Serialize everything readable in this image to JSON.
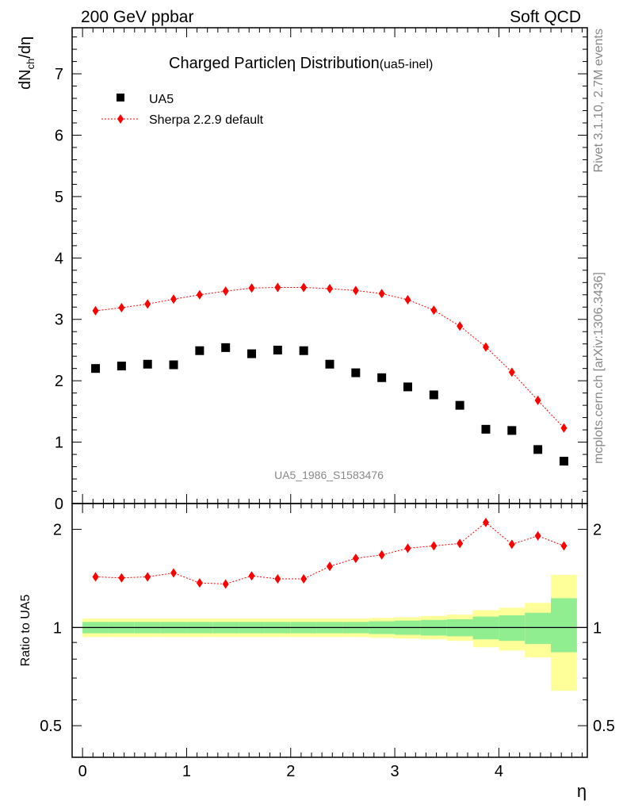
{
  "header": {
    "left": "200 GeV ppbar",
    "right": "Soft QCD"
  },
  "side": {
    "rivet": "Rivet 3.1.10,  2.7M events",
    "mcplots": "mcplots.cern.ch [arXiv:1306.3436]"
  },
  "chart_data": [
    {
      "type": "scatter",
      "title": "Charged Particle",
      "title_eta": "η",
      "title_rest": " Distribution",
      "title_tag": "(ua5-inel)",
      "ylabel_main": "dN",
      "ylabel_sub": "ch",
      "ylabel_tail": "/dη",
      "watermark": "UA5_1986_S1583476",
      "xlim": [
        -0.1,
        4.85
      ],
      "ylim": [
        0,
        7.75
      ],
      "y_ticks": [
        0,
        1,
        2,
        3,
        4,
        5,
        6,
        7
      ],
      "y_tick_labels": [
        "0",
        "1",
        "2",
        "3",
        "4",
        "5",
        "6",
        "7"
      ],
      "legend": [
        {
          "name": "UA5",
          "marker": "square",
          "color": "#000000"
        },
        {
          "name": "Sherpa 2.2.9 default",
          "marker": "diamond",
          "color": "#ff0000"
        }
      ],
      "x": [
        0.125,
        0.375,
        0.625,
        0.875,
        1.125,
        1.375,
        1.625,
        1.875,
        2.125,
        2.375,
        2.625,
        2.875,
        3.125,
        3.375,
        3.625,
        3.875,
        4.125,
        4.375,
        4.625
      ],
      "series": [
        {
          "name": "UA5",
          "values": [
            2.2,
            2.24,
            2.27,
            2.26,
            2.49,
            2.54,
            2.44,
            2.5,
            2.49,
            2.27,
            2.13,
            2.05,
            1.9,
            1.77,
            1.6,
            1.21,
            1.19,
            0.88,
            0.69
          ]
        },
        {
          "name": "Sherpa 2.2.9 default",
          "values": [
            3.14,
            3.19,
            3.25,
            3.33,
            3.4,
            3.46,
            3.51,
            3.52,
            3.52,
            3.5,
            3.47,
            3.42,
            3.32,
            3.15,
            2.89,
            2.55,
            2.14,
            1.68,
            1.23
          ]
        }
      ]
    },
    {
      "type": "scatter",
      "ylabel": "Ratio to UA5",
      "xlabel": "η",
      "xlim": [
        -0.1,
        4.85
      ],
      "ylim": [
        0.4,
        2.4
      ],
      "y_scale": "log",
      "x_ticks": [
        0,
        1,
        2,
        3,
        4
      ],
      "x_tick_labels": [
        "0",
        "1",
        "2",
        "3",
        "4"
      ],
      "y_ticks": [
        0.5,
        1,
        2
      ],
      "y_tick_labels": [
        "0.5",
        "1",
        "2"
      ],
      "x": [
        0.125,
        0.375,
        0.625,
        0.875,
        1.125,
        1.375,
        1.625,
        1.875,
        2.125,
        2.375,
        2.625,
        2.875,
        3.125,
        3.375,
        3.625,
        3.875,
        4.125,
        4.375,
        4.625
      ],
      "series": [
        {
          "name": "Sherpa 2.2.9 default",
          "values": [
            1.43,
            1.42,
            1.43,
            1.47,
            1.37,
            1.36,
            1.44,
            1.41,
            1.41,
            1.54,
            1.63,
            1.67,
            1.75,
            1.78,
            1.81,
            2.1,
            1.8,
            1.91,
            1.78
          ]
        }
      ],
      "bands": {
        "stat_low": [
          0.96,
          0.96,
          0.96,
          0.96,
          0.96,
          0.96,
          0.96,
          0.96,
          0.96,
          0.96,
          0.96,
          0.955,
          0.95,
          0.945,
          0.94,
          0.92,
          0.91,
          0.89,
          0.84
        ],
        "stat_high": [
          1.04,
          1.04,
          1.04,
          1.04,
          1.04,
          1.04,
          1.04,
          1.04,
          1.04,
          1.04,
          1.04,
          1.045,
          1.05,
          1.055,
          1.06,
          1.08,
          1.09,
          1.11,
          1.23
        ],
        "total_low": [
          0.935,
          0.935,
          0.935,
          0.935,
          0.935,
          0.935,
          0.935,
          0.935,
          0.935,
          0.935,
          0.935,
          0.93,
          0.925,
          0.92,
          0.91,
          0.87,
          0.85,
          0.81,
          0.64
        ],
        "total_high": [
          1.065,
          1.065,
          1.065,
          1.065,
          1.065,
          1.065,
          1.065,
          1.065,
          1.065,
          1.065,
          1.065,
          1.07,
          1.075,
          1.085,
          1.095,
          1.13,
          1.15,
          1.19,
          1.45
        ]
      },
      "band_colors": {
        "stat": "#90ee90",
        "total": "#ffff99"
      }
    }
  ]
}
